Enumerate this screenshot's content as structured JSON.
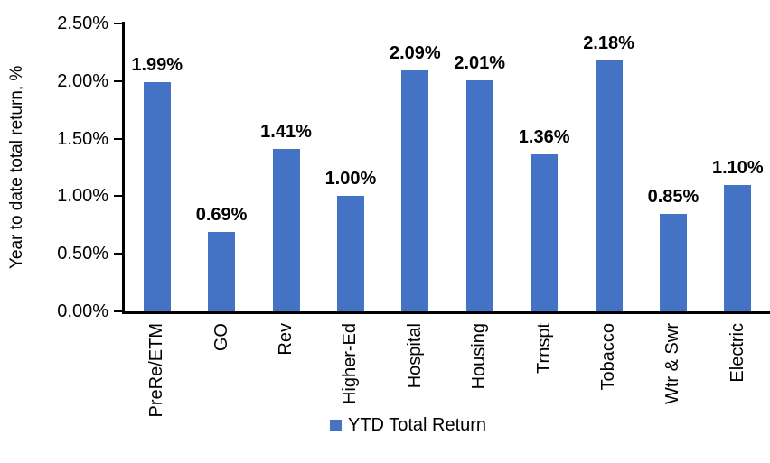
{
  "chart_data": {
    "type": "bar",
    "ylabel": "Year to date total return, %",
    "categories": [
      "PreRe/ETM",
      "GO",
      "Rev",
      "Higher-Ed",
      "Hospital",
      "Housing",
      "Trnspt",
      "Tobacco",
      "Wtr & Swr",
      "Electric"
    ],
    "values": [
      1.99,
      0.69,
      1.41,
      1.0,
      2.09,
      2.01,
      1.36,
      2.18,
      0.85,
      1.1
    ],
    "value_labels": [
      "1.99%",
      "0.69%",
      "1.41%",
      "1.00%",
      "2.09%",
      "2.01%",
      "1.36%",
      "2.18%",
      "0.85%",
      "1.10%"
    ],
    "legend": [
      "YTD Total Return"
    ],
    "legend_position": "bottom",
    "ylim": [
      0,
      2.5
    ],
    "ytick_step": 0.5,
    "ytick_labels": [
      "0.00%",
      "0.50%",
      "1.00%",
      "1.50%",
      "2.00%",
      "2.50%"
    ],
    "grid": false,
    "bar_color": "#4472C4",
    "axis_color": "#000000",
    "label_color": "#000000"
  }
}
